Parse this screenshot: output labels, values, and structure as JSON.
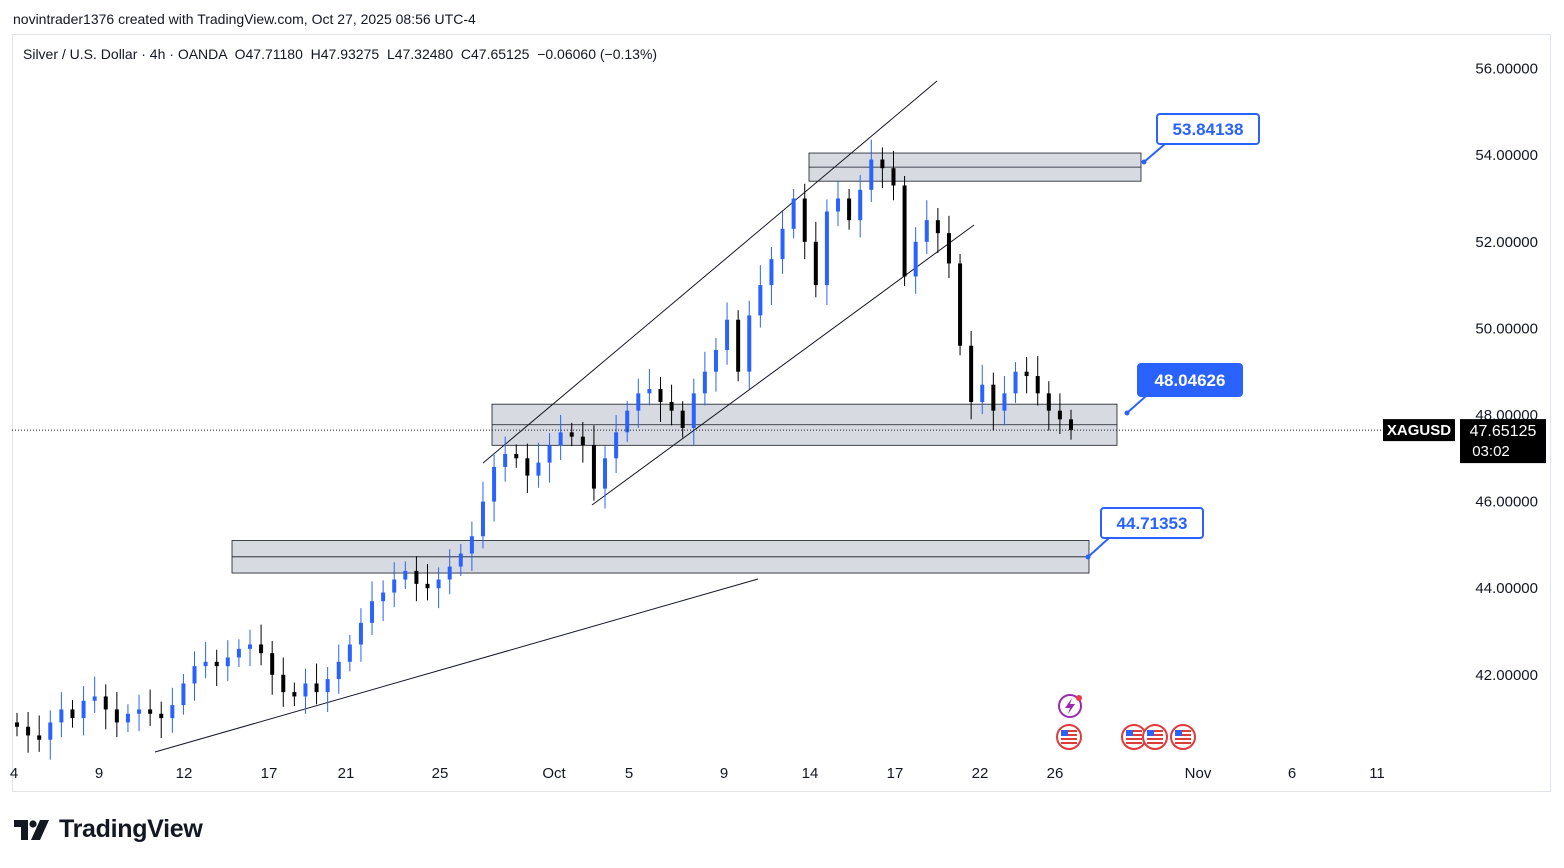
{
  "header": {
    "attribution": "novintrader1376 created with TradingView.com, Oct 27, 2025 08:56 UTC-4"
  },
  "legend": {
    "symbol_desc": "Silver / U.S. Dollar · 4h · OANDA",
    "open": "O47.71180",
    "high": "H47.93275",
    "low": "L47.32480",
    "close": "C47.65125",
    "change": "−0.06060 (−0.13%)"
  },
  "price_tag": {
    "symbol": "XAGUSD",
    "price": "47.65125",
    "countdown": "03:02"
  },
  "footer": {
    "brand": "TradingView"
  },
  "colors": {
    "up": "#2962ff",
    "down": "#000000",
    "zone_fill": "#d1d4dc",
    "callout": "#2962ff",
    "price_tag_bg": "#000000"
  },
  "chart_data": {
    "type": "candlestick",
    "symbol": "XAGUSD",
    "timeframe": "4h",
    "y_axis": {
      "ticks": [
        42,
        44,
        46,
        48,
        50,
        52,
        54,
        56
      ],
      "tick_labels": [
        "42.00000",
        "44.00000",
        "46.00000",
        "48.00000",
        "50.00000",
        "52.00000",
        "54.00000",
        "56.00000"
      ]
    },
    "x_axis": {
      "tick_labels": [
        "4",
        "9",
        "12",
        "17",
        "21",
        "25",
        "Oct",
        "5",
        "9",
        "14",
        "17",
        "22",
        "26",
        "Nov",
        "6",
        "11"
      ]
    },
    "last_price": 47.65125,
    "zones": [
      {
        "name": "resistance-zone",
        "low": 53.4,
        "high": 54.05,
        "label": "53.84138"
      },
      {
        "name": "mid-zone",
        "low": 47.3,
        "high": 48.25,
        "label": "48.04626"
      },
      {
        "name": "support-zone",
        "low": 44.35,
        "high": 45.1,
        "label": "44.71353"
      }
    ],
    "callouts": [
      "53.84138",
      "48.04626",
      "44.71353"
    ],
    "trendlines": [
      "channel-upper",
      "channel-lower",
      "long-term-support"
    ],
    "candles_approx_closes": [
      40.8,
      40.6,
      40.5,
      40.9,
      41.2,
      41.0,
      41.4,
      41.5,
      41.2,
      40.9,
      41.1,
      41.2,
      41.1,
      41.0,
      41.3,
      41.8,
      42.2,
      42.3,
      42.2,
      42.4,
      42.6,
      42.7,
      42.5,
      42.0,
      41.6,
      41.5,
      41.8,
      41.6,
      41.9,
      42.3,
      42.7,
      43.2,
      43.7,
      43.9,
      44.2,
      44.4,
      44.1,
      44.0,
      44.2,
      44.5,
      44.8,
      45.2,
      46.0,
      46.8,
      47.1,
      47.0,
      46.6,
      46.9,
      47.3,
      47.6,
      47.5,
      47.3,
      46.3,
      47.0,
      47.6,
      48.1,
      48.5,
      48.6,
      48.3,
      48.1,
      47.7,
      48.5,
      49.0,
      49.5,
      50.2,
      49.0,
      50.3,
      51.0,
      51.6,
      52.3,
      53.0,
      52.0,
      51.0,
      52.7,
      53.0,
      52.5,
      53.2,
      53.9,
      53.7,
      53.3,
      51.2,
      52.0,
      52.5,
      52.2,
      51.5,
      49.6,
      48.3,
      48.7,
      48.1,
      48.5,
      49.0,
      48.9,
      48.5,
      48.1,
      47.9,
      47.65
    ]
  }
}
